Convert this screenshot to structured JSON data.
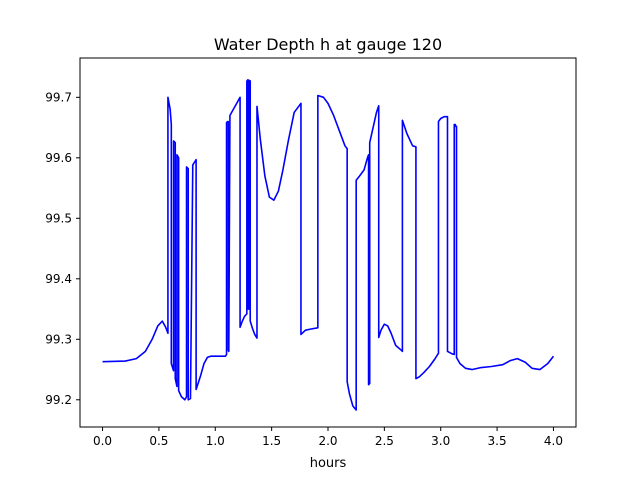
{
  "chart_data": {
    "type": "line",
    "title": "Water Depth h at gauge 120",
    "xlabel": "hours",
    "ylabel": "",
    "xlim": [
      -0.2,
      4.2
    ],
    "ylim": [
      99.155,
      99.765
    ],
    "xticks": [
      0.0,
      0.5,
      1.0,
      1.5,
      2.0,
      2.5,
      3.0,
      3.5,
      4.0
    ],
    "xtick_labels": [
      "0.0",
      "0.5",
      "1.0",
      "1.5",
      "2.0",
      "2.5",
      "3.0",
      "3.5",
      "4.0"
    ],
    "yticks": [
      99.2,
      99.3,
      99.4,
      99.5,
      99.6,
      99.7
    ],
    "ytick_labels": [
      "99.2",
      "99.3",
      "99.4",
      "99.5",
      "99.6",
      "99.7"
    ],
    "grid": false,
    "legend": "none",
    "series": [
      {
        "color": "#0000ff",
        "x": [
          0.0,
          0.2,
          0.3,
          0.38,
          0.44,
          0.49,
          0.53,
          0.56,
          0.58,
          0.58,
          0.6,
          0.61,
          0.61,
          0.63,
          0.63,
          0.645,
          0.645,
          0.66,
          0.66,
          0.675,
          0.675,
          0.7,
          0.73,
          0.745,
          0.745,
          0.76,
          0.76,
          0.78,
          0.8,
          0.8,
          0.83,
          0.83,
          0.87,
          0.9,
          0.93,
          0.96,
          1.0,
          1.05,
          1.09,
          1.1,
          1.1,
          1.11,
          1.115,
          1.115,
          1.12,
          1.13,
          1.16,
          1.19,
          1.22,
          1.22,
          1.24,
          1.26,
          1.28,
          1.28,
          1.29,
          1.29,
          1.3,
          1.3,
          1.31,
          1.31,
          1.33,
          1.35,
          1.37,
          1.37,
          1.4,
          1.44,
          1.48,
          1.52,
          1.56,
          1.6,
          1.65,
          1.7,
          1.76,
          1.76,
          1.8,
          1.85,
          1.91,
          1.91,
          1.96,
          2.0,
          2.05,
          2.1,
          2.15,
          2.17,
          2.17,
          2.19,
          2.22,
          2.25,
          2.25,
          2.28,
          2.32,
          2.35,
          2.36,
          2.36,
          2.37,
          2.37,
          2.4,
          2.43,
          2.45,
          2.45,
          2.47,
          2.5,
          2.53,
          2.56,
          2.6,
          2.65,
          2.66,
          2.66,
          2.7,
          2.75,
          2.78,
          2.78,
          2.81,
          2.85,
          2.9,
          2.95,
          2.98,
          2.98,
          3.0,
          3.03,
          3.06,
          3.06,
          3.08,
          3.1,
          3.12,
          3.12,
          3.13,
          3.13,
          3.14,
          3.14,
          3.17,
          3.22,
          3.28,
          3.35,
          3.45,
          3.55,
          3.62,
          3.68,
          3.75,
          3.81,
          3.88,
          3.95,
          4.0
        ],
        "y": [
          99.263,
          99.264,
          99.268,
          99.28,
          99.3,
          99.322,
          99.33,
          99.32,
          99.31,
          99.7,
          99.68,
          99.655,
          99.26,
          99.248,
          99.628,
          99.625,
          99.235,
          99.222,
          99.605,
          99.6,
          99.215,
          99.205,
          99.2,
          99.205,
          99.585,
          99.582,
          99.2,
          99.202,
          99.58,
          99.588,
          99.597,
          99.217,
          99.24,
          99.26,
          99.27,
          99.272,
          99.272,
          99.272,
          99.272,
          99.275,
          99.658,
          99.66,
          99.66,
          99.282,
          99.28,
          99.67,
          99.68,
          99.69,
          99.7,
          99.32,
          99.33,
          99.338,
          99.342,
          99.727,
          99.729,
          99.35,
          99.35,
          99.728,
          99.727,
          99.33,
          99.318,
          99.308,
          99.302,
          99.685,
          99.63,
          99.57,
          99.535,
          99.53,
          99.545,
          99.58,
          99.63,
          99.675,
          99.69,
          99.308,
          99.315,
          99.317,
          99.319,
          99.703,
          99.7,
          99.69,
          99.67,
          99.645,
          99.62,
          99.615,
          99.23,
          99.21,
          99.19,
          99.183,
          99.563,
          99.57,
          99.58,
          99.6,
          99.605,
          99.225,
          99.227,
          99.625,
          99.65,
          99.675,
          99.686,
          99.303,
          99.315,
          99.325,
          99.322,
          99.31,
          99.29,
          99.282,
          99.28,
          99.662,
          99.64,
          99.62,
          99.618,
          99.235,
          99.238,
          99.245,
          99.255,
          99.268,
          99.277,
          99.66,
          99.665,
          99.668,
          99.668,
          99.28,
          99.278,
          99.276,
          99.275,
          99.655,
          99.655,
          99.652,
          99.652,
          99.27,
          99.26,
          99.252,
          99.25,
          99.253,
          99.255,
          99.258,
          99.265,
          99.268,
          99.262,
          99.252,
          99.25,
          99.26,
          99.272
        ]
      }
    ]
  }
}
